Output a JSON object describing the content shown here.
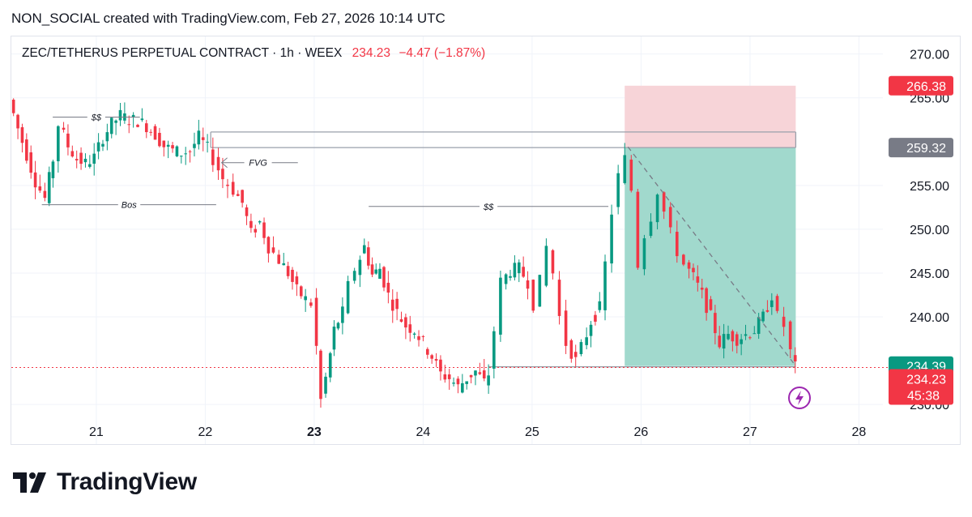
{
  "header": {
    "text": "NON_SOCIAL created with TradingView.com, Feb 27, 2026 10:14 UTC"
  },
  "legend": {
    "symbol": "ZEC/TETHERUS PERPETUAL CONTRACT · 1h · WEEX",
    "price": "234.23",
    "change": "−4.47 (−1.87%)"
  },
  "colors": {
    "up": "#089981",
    "down": "#f23645",
    "stop_zone": "#f7d4d8",
    "profit_zone": "#a1d9cd",
    "grey_label": "#787b86",
    "teal_label": "#089981",
    "red_label": "#f23645",
    "bolt": "#9c27b0"
  },
  "icons": {
    "alert": "lightning-bolt-icon",
    "brand": "tradingview-logo-icon"
  },
  "chart_data": {
    "type": "candlestick",
    "interval": "1h",
    "ylim": [
      229,
      272
    ],
    "y_ticks": [
      "230.00",
      "240.00",
      "245.00",
      "250.00",
      "255.00",
      "265.00",
      "270.00"
    ],
    "x_ticks": [
      {
        "label": "21",
        "x": 21
      },
      {
        "label": "22",
        "x": 22
      },
      {
        "label": "23",
        "x": 23,
        "bold": true
      },
      {
        "label": "24",
        "x": 24
      },
      {
        "label": "25",
        "x": 25
      },
      {
        "label": "26",
        "x": 26
      },
      {
        "label": "27",
        "x": 27
      },
      {
        "label": "28",
        "x": 28
      }
    ],
    "xlim": [
      20.22,
      28.22
    ],
    "price_labels": [
      {
        "text": "266.38",
        "value": 266.38,
        "color": "red_label"
      },
      {
        "text": "259.32",
        "value": 259.32,
        "color": "grey_label"
      },
      {
        "text": "234.39",
        "value": 234.39,
        "color": "teal_label"
      },
      {
        "text": "234.23",
        "value": 234.23,
        "color": "red_label",
        "sub": "45:38"
      }
    ],
    "position": {
      "x_start": 25.85,
      "x_end": 27.42,
      "entry": 259.32,
      "stop": 266.38,
      "target": 234.39
    },
    "levels": [
      {
        "y": 261.1,
        "x1": 22.05,
        "x2": 27.42,
        "color": "#9aa0ab"
      },
      {
        "y": 259.32,
        "x1": 22.05,
        "x2": 27.42,
        "color": "#9aa0ab"
      }
    ],
    "current_price": 234.23,
    "annotations": [
      {
        "text": "$$",
        "line": [
          20.6,
          21.4
        ],
        "y": 262.8
      },
      {
        "text": "FVG",
        "arrow": [
          22.15,
          22.85
        ],
        "y": 257.6
      },
      {
        "text": "Bos",
        "line": [
          20.5,
          22.1
        ],
        "y": 252.8
      },
      {
        "text": "$$",
        "line": [
          23.5,
          25.7
        ],
        "y": 252.6
      }
    ],
    "trend_line": {
      "x1": 25.88,
      "y1": 259.4,
      "x2": 27.42,
      "y2": 234.4
    },
    "close_path": [
      [
        20.22,
        264.8
      ],
      [
        20.3,
        261.5
      ],
      [
        20.38,
        258.5
      ],
      [
        20.46,
        255.5
      ],
      [
        20.55,
        253.5
      ],
      [
        20.62,
        258
      ],
      [
        20.68,
        262
      ],
      [
        20.76,
        259.5
      ],
      [
        20.84,
        258
      ],
      [
        20.92,
        257.5
      ],
      [
        21.0,
        258.2
      ],
      [
        21.08,
        260.5
      ],
      [
        21.16,
        262
      ],
      [
        21.24,
        263
      ],
      [
        21.32,
        262.5
      ],
      [
        21.4,
        262.4
      ],
      [
        21.48,
        261.8
      ],
      [
        21.56,
        260.8
      ],
      [
        21.64,
        259.5
      ],
      [
        21.72,
        259.0
      ],
      [
        21.8,
        258.7
      ],
      [
        21.88,
        259.0
      ],
      [
        21.96,
        260.5
      ],
      [
        22.04,
        259.2
      ],
      [
        22.1,
        258.0
      ],
      [
        22.18,
        255.8
      ],
      [
        22.28,
        254.5
      ],
      [
        22.36,
        253.0
      ],
      [
        22.44,
        249.5
      ],
      [
        22.52,
        250.8
      ],
      [
        22.6,
        248.0
      ],
      [
        22.7,
        246.5
      ],
      [
        22.78,
        245.0
      ],
      [
        22.86,
        243.0
      ],
      [
        22.94,
        242.0
      ],
      [
        23.0,
        241.5
      ],
      [
        23.04,
        236.5
      ],
      [
        23.08,
        230.5
      ],
      [
        23.13,
        233.0
      ],
      [
        23.2,
        238.5
      ],
      [
        23.28,
        240.5
      ],
      [
        23.34,
        243.5
      ],
      [
        23.4,
        245.5
      ],
      [
        23.48,
        248.0
      ],
      [
        23.55,
        244.8
      ],
      [
        23.62,
        245.5
      ],
      [
        23.7,
        242.5
      ],
      [
        23.78,
        240.5
      ],
      [
        23.86,
        239.0
      ],
      [
        23.94,
        238.5
      ],
      [
        24.02,
        237.0
      ],
      [
        24.1,
        235.5
      ],
      [
        24.18,
        233.5
      ],
      [
        24.26,
        233.0
      ],
      [
        24.34,
        232.0
      ],
      [
        24.42,
        233.0
      ],
      [
        24.5,
        233.8
      ],
      [
        24.58,
        232.5
      ],
      [
        24.62,
        233.5
      ],
      [
        24.68,
        238.5
      ],
      [
        24.74,
        244.0
      ],
      [
        24.82,
        245.3
      ],
      [
        24.9,
        245.5
      ],
      [
        24.98,
        244.0
      ],
      [
        25.04,
        241.5
      ],
      [
        25.1,
        244.0
      ],
      [
        25.16,
        248.0
      ],
      [
        25.22,
        245.0
      ],
      [
        25.28,
        240.0
      ],
      [
        25.34,
        237.0
      ],
      [
        25.42,
        235.0
      ],
      [
        25.48,
        236.5
      ],
      [
        25.56,
        239.5
      ],
      [
        25.64,
        241.0
      ],
      [
        25.7,
        246.0
      ],
      [
        25.76,
        252.0
      ],
      [
        25.82,
        256.0
      ],
      [
        25.88,
        258.0
      ],
      [
        25.94,
        254.5
      ],
      [
        26.0,
        246.0
      ],
      [
        26.06,
        249.5
      ],
      [
        26.12,
        251.5
      ],
      [
        26.18,
        254.5
      ],
      [
        26.24,
        252.0
      ],
      [
        26.3,
        249.5
      ],
      [
        26.36,
        247.5
      ],
      [
        26.42,
        246.0
      ],
      [
        26.5,
        244.5
      ],
      [
        26.58,
        242.5
      ],
      [
        26.66,
        240.0
      ],
      [
        26.74,
        237.0
      ],
      [
        26.82,
        238.0
      ],
      [
        26.9,
        237.5
      ],
      [
        26.98,
        238.0
      ],
      [
        27.06,
        238.5
      ],
      [
        27.14,
        240.0
      ],
      [
        27.22,
        242.5
      ],
      [
        27.28,
        240.0
      ],
      [
        27.34,
        239.0
      ],
      [
        27.4,
        236.0
      ],
      [
        27.43,
        234.23
      ]
    ]
  }
}
